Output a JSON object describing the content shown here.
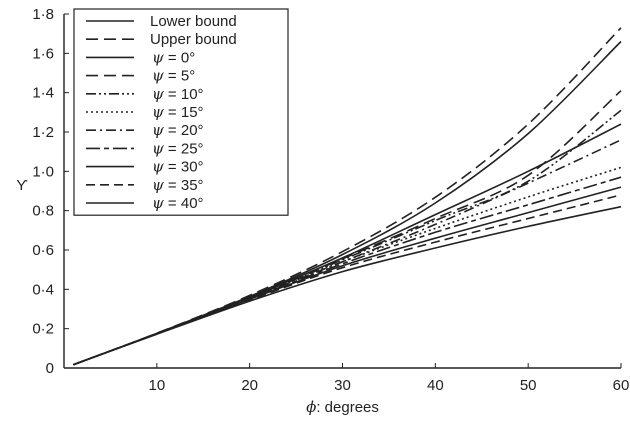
{
  "chart_data": {
    "type": "line",
    "xlabel": {
      "symbol": "ϕ",
      "text": ": degrees"
    },
    "ylabel": "ϒ",
    "xlim": [
      0,
      60
    ],
    "ylim": [
      0,
      1.8
    ],
    "x_ticks": [
      10,
      20,
      30,
      40,
      50,
      60
    ],
    "y_ticks": [
      {
        "value": 0,
        "label": "0"
      },
      {
        "value": 0.2,
        "label": "0·2"
      },
      {
        "value": 0.4,
        "label": "0·4"
      },
      {
        "value": 0.6,
        "label": "0·6"
      },
      {
        "value": 0.8,
        "label": "0·8"
      },
      {
        "value": 1.0,
        "label": "1·0"
      },
      {
        "value": 1.2,
        "label": "1·2"
      },
      {
        "value": 1.4,
        "label": "1·4"
      },
      {
        "value": 1.6,
        "label": "1·6"
      },
      {
        "value": 1.8,
        "label": "1·8"
      }
    ],
    "grid": false,
    "legend_position": "top-left",
    "line_color": "#222222",
    "series": [
      {
        "name": "Lower bound",
        "legend": {
          "text": "Lower bound"
        },
        "dash": "solid",
        "x": [
          1,
          10,
          20,
          30,
          40,
          50,
          60
        ],
        "y": [
          0.017,
          0.176,
          0.364,
          0.577,
          0.839,
          1.192,
          1.66
        ]
      },
      {
        "name": "Upper bound",
        "legend": {
          "text": "Upper bound"
        },
        "dash": "long-dash",
        "x": [
          1,
          10,
          20,
          30,
          40,
          50,
          60
        ],
        "y": [
          0.017,
          0.177,
          0.369,
          0.592,
          0.868,
          1.24,
          1.73
        ]
      },
      {
        "name": "ψ = 0°",
        "legend": {
          "symbol": "ψ",
          "text": " = 0°"
        },
        "dash": "solid",
        "x": [
          1,
          10,
          20,
          30,
          40,
          50,
          60
        ],
        "y": [
          0.017,
          0.175,
          0.36,
          0.56,
          0.78,
          1.0,
          1.24
        ]
      },
      {
        "name": "ψ = 5°",
        "legend": {
          "symbol": "ψ",
          "text": " = 5°"
        },
        "dash": "long-dash",
        "x": [
          1,
          10,
          20,
          30,
          40,
          50,
          60
        ],
        "y": [
          0.017,
          0.175,
          0.358,
          0.555,
          0.76,
          0.98,
          1.41
        ]
      },
      {
        "name": "ψ = 10°",
        "legend": {
          "symbol": "ψ",
          "text": " = 10°"
        },
        "dash": "dash-dot-dot",
        "x": [
          1,
          10,
          20,
          30,
          40,
          50,
          60
        ],
        "y": [
          0.017,
          0.175,
          0.357,
          0.55,
          0.75,
          0.95,
          1.31
        ]
      },
      {
        "name": "ψ = 15°",
        "legend": {
          "symbol": "ψ",
          "text": " = 15°"
        },
        "dash": "dotted",
        "x": [
          1,
          10,
          20,
          30,
          40,
          50,
          60
        ],
        "y": [
          0.017,
          0.175,
          0.355,
          0.54,
          0.71,
          0.87,
          1.02
        ]
      },
      {
        "name": "ψ = 20°",
        "legend": {
          "symbol": "ψ",
          "text": " = 20°"
        },
        "dash": "dash-dot",
        "x": [
          1,
          10,
          20,
          30,
          40,
          50,
          60
        ],
        "y": [
          0.017,
          0.174,
          0.354,
          0.54,
          0.73,
          0.94,
          1.16
        ]
      },
      {
        "name": "ψ = 25°",
        "legend": {
          "symbol": "ψ",
          "text": " = 25°"
        },
        "dash": "long-short",
        "x": [
          1,
          10,
          20,
          30,
          40,
          50,
          60
        ],
        "y": [
          0.017,
          0.174,
          0.352,
          0.53,
          0.69,
          0.83,
          0.97
        ]
      },
      {
        "name": "ψ = 30°",
        "legend": {
          "symbol": "ψ",
          "text": " = 30°"
        },
        "dash": "solid",
        "x": [
          1,
          10,
          20,
          30,
          40,
          50,
          60
        ],
        "y": [
          0.017,
          0.174,
          0.35,
          0.52,
          0.66,
          0.79,
          0.92
        ]
      },
      {
        "name": "ψ = 35°",
        "legend": {
          "symbol": "ψ",
          "text": " = 35°"
        },
        "dash": "medium-dash",
        "x": [
          1,
          10,
          20,
          30,
          40,
          50,
          60
        ],
        "y": [
          0.017,
          0.173,
          0.346,
          0.51,
          0.64,
          0.76,
          0.88
        ]
      },
      {
        "name": "ψ = 40°",
        "legend": {
          "symbol": "ψ",
          "text": " = 40°"
        },
        "dash": "solid",
        "x": [
          1,
          10,
          20,
          30,
          40,
          50,
          60
        ],
        "y": [
          0.017,
          0.172,
          0.34,
          0.49,
          0.61,
          0.72,
          0.82
        ]
      }
    ]
  }
}
